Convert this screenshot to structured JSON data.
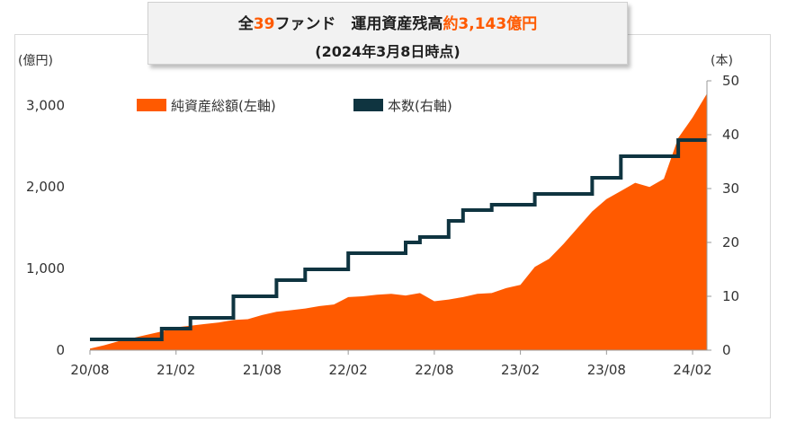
{
  "title": {
    "line1_prefix": "全",
    "fund_count": "39",
    "line1_mid": "ファンド　運用資産残高",
    "aum": "約3,143億円",
    "line2": "(2024年3月8日時点)"
  },
  "colors": {
    "aum": "#ff5a00",
    "count": "#0f3440",
    "accent": "#ff5a00"
  },
  "chart_data": {
    "type": "area",
    "left_axis": {
      "unit": "(億円)",
      "ticks": [
        0,
        1000,
        2000,
        3000
      ],
      "tick_labels": [
        "0",
        "1,000",
        "2,000",
        "3,000"
      ],
      "ylim": [
        0,
        3300
      ]
    },
    "right_axis": {
      "unit": "(本)",
      "ticks": [
        0,
        10,
        20,
        30,
        40,
        50
      ],
      "tick_labels": [
        "0",
        "10",
        "20",
        "30",
        "40",
        "50"
      ],
      "ylim": [
        0,
        50
      ]
    },
    "x_ticks": [
      "20/08",
      "21/02",
      "21/08",
      "22/02",
      "22/08",
      "23/02",
      "23/08",
      "24/02"
    ],
    "legend": [
      "純資産総額(左軸)",
      "本数(右軸)"
    ],
    "series": [
      {
        "name": "純資産総額(左軸)",
        "type": "area",
        "axis": "left",
        "x": [
          "2020-08",
          "2020-09",
          "2020-10",
          "2020-11",
          "2020-12",
          "2021-01",
          "2021-02",
          "2021-03",
          "2021-04",
          "2021-05",
          "2021-06",
          "2021-07",
          "2021-08",
          "2021-09",
          "2021-10",
          "2021-11",
          "2021-12",
          "2022-01",
          "2022-02",
          "2022-03",
          "2022-04",
          "2022-05",
          "2022-06",
          "2022-07",
          "2022-08",
          "2022-09",
          "2022-10",
          "2022-11",
          "2022-12",
          "2023-01",
          "2023-02",
          "2023-03",
          "2023-04",
          "2023-05",
          "2023-06",
          "2023-07",
          "2023-08",
          "2023-09",
          "2023-10",
          "2023-11",
          "2023-12",
          "2024-01",
          "2024-02",
          "2024-03"
        ],
        "values": [
          20,
          60,
          110,
          150,
          190,
          230,
          280,
          300,
          320,
          340,
          370,
          380,
          430,
          470,
          490,
          510,
          540,
          560,
          650,
          660,
          680,
          690,
          670,
          700,
          600,
          620,
          650,
          690,
          700,
          760,
          800,
          1020,
          1120,
          1300,
          1500,
          1700,
          1850,
          1950,
          2050,
          2000,
          2100,
          2600,
          2850,
          3143
        ]
      },
      {
        "name": "本数(右軸)",
        "type": "step",
        "axis": "right",
        "x": [
          "2020-08",
          "2021-01",
          "2021-03",
          "2021-06",
          "2021-09",
          "2021-11",
          "2022-02",
          "2022-06",
          "2022-07",
          "2022-09",
          "2022-10",
          "2022-12",
          "2023-03",
          "2023-07",
          "2023-09",
          "2024-01",
          "2024-03"
        ],
        "values": [
          2,
          4,
          6,
          10,
          13,
          15,
          18,
          20,
          21,
          24,
          26,
          27,
          29,
          32,
          36,
          39,
          39
        ]
      }
    ]
  }
}
